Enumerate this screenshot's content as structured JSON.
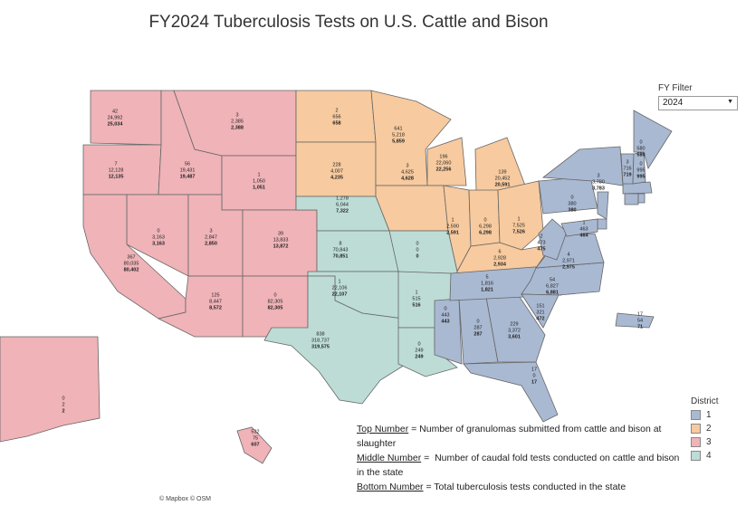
{
  "title": "FY2024 Tuberculosis Tests on U.S. Cattle and Bison",
  "filter": {
    "label": "FY Filter",
    "value": "2024"
  },
  "legend": {
    "title": "District",
    "items": [
      {
        "district": 1,
        "color": "#a9b9d2"
      },
      {
        "district": 2,
        "color": "#f7ca9f"
      },
      {
        "district": 3,
        "color": "#efb3b8"
      },
      {
        "district": 4,
        "color": "#bddcd6"
      }
    ]
  },
  "states": [
    {
      "district": 3,
      "numbers": [
        "42",
        "24,992",
        "25,034"
      ]
    },
    {
      "district": 3,
      "numbers": [
        "7",
        "12,128",
        "12,135"
      ]
    },
    {
      "district": 3,
      "numbers": [
        "56",
        "19,431",
        "19,487"
      ]
    },
    {
      "district": 3,
      "numbers": [
        "3",
        "2,385",
        "2,388"
      ]
    },
    {
      "district": 3,
      "numbers": [
        "1",
        "1,050",
        "1,051"
      ]
    },
    {
      "district": 3,
      "numbers": [
        "0",
        "3,163",
        "3,163"
      ]
    },
    {
      "district": 3,
      "numbers": [
        "3",
        "2,847",
        "2,850"
      ]
    },
    {
      "district": 3,
      "numbers": [
        "39",
        "13,833",
        "13,872"
      ]
    },
    {
      "district": 3,
      "numbers": [
        "367",
        "80,035",
        "80,402"
      ]
    },
    {
      "district": 3,
      "numbers": [
        "125",
        "8,447",
        "8,572"
      ]
    },
    {
      "district": 3,
      "numbers": [
        "0",
        "82,305",
        "82,305"
      ]
    },
    {
      "district": 3,
      "numbers": [
        "0",
        "2",
        "2"
      ]
    },
    {
      "district": 3,
      "numbers": [
        "532",
        "75",
        "607"
      ]
    },
    {
      "district": 2,
      "numbers": [
        "2",
        "656",
        "658"
      ]
    },
    {
      "district": 2,
      "numbers": [
        "228",
        "4,007",
        "4,235"
      ]
    },
    {
      "district": 2,
      "numbers": [
        "641",
        "5,218",
        "5,859"
      ]
    },
    {
      "district": 2,
      "numbers": [
        "196",
        "22,060",
        "22,256"
      ]
    },
    {
      "district": 2,
      "numbers": [
        "3",
        "4,625",
        "4,628"
      ]
    },
    {
      "district": 2,
      "numbers": [
        "139",
        "20,452",
        "20,591"
      ]
    },
    {
      "district": 2,
      "numbers": [
        "1",
        "2,590",
        "2,591"
      ]
    },
    {
      "district": 2,
      "numbers": [
        "0",
        "6,298",
        "6,298"
      ]
    },
    {
      "district": 2,
      "numbers": [
        "1",
        "7,525",
        "7,526"
      ]
    },
    {
      "district": 2,
      "numbers": [
        "6",
        "2,928",
        "2,934"
      ]
    },
    {
      "district": 4,
      "numbers": [
        "1,278",
        "6,044",
        "7,322"
      ]
    },
    {
      "district": 4,
      "numbers": [
        "8",
        "70,843",
        "70,851"
      ]
    },
    {
      "district": 4,
      "numbers": [
        "0",
        "0",
        "0"
      ]
    },
    {
      "district": 4,
      "numbers": [
        "1",
        "22,106",
        "22,107"
      ]
    },
    {
      "district": 4,
      "numbers": [
        "838",
        "318,737",
        "319,575"
      ]
    },
    {
      "district": 4,
      "numbers": [
        "1",
        "515",
        "516"
      ]
    },
    {
      "district": 4,
      "numbers": [
        "0",
        "249",
        "249"
      ]
    },
    {
      "district": 1,
      "numbers": [
        "0",
        "443",
        "443"
      ]
    },
    {
      "district": 1,
      "numbers": [
        "0",
        "287",
        "287"
      ]
    },
    {
      "district": 1,
      "numbers": [
        "229",
        "3,372",
        "3,601"
      ]
    },
    {
      "district": 1,
      "numbers": [
        "17",
        "0",
        "17"
      ]
    },
    {
      "district": 1,
      "numbers": [
        "5",
        "1,816",
        "1,821"
      ]
    },
    {
      "district": 1,
      "numbers": [
        "54",
        "6,827",
        "6,881"
      ]
    },
    {
      "district": 1,
      "numbers": [
        "151",
        "321",
        "472"
      ]
    },
    {
      "district": 1,
      "numbers": [
        "4",
        "2,971",
        "2,975"
      ]
    },
    {
      "district": 1,
      "numbers": [
        "2",
        "473",
        "475"
      ]
    },
    {
      "district": 1,
      "numbers": [
        "0",
        "380",
        "380"
      ]
    },
    {
      "district": 1,
      "numbers": [
        "3",
        "3,780",
        "3,783"
      ]
    },
    {
      "district": 1,
      "numbers": [
        "3",
        "716",
        "719"
      ]
    },
    {
      "district": 1,
      "numbers": [
        "0",
        "995",
        "995"
      ]
    },
    {
      "district": 1,
      "numbers": [
        "0",
        "580",
        "580"
      ]
    },
    {
      "district": 1,
      "numbers": [
        "1",
        "463",
        "464"
      ]
    },
    {
      "district": 1,
      "numbers": [
        "17",
        "54",
        "71"
      ]
    }
  ],
  "notes": [
    {
      "term": "Top Number",
      "text": " = Number of granulomas submitted from cattle and bison at slaughter"
    },
    {
      "term": "Middle Number",
      "text": " =  Number of caudal fold tests conducted on cattle and bison in the state"
    },
    {
      "term": "Bottom Number",
      "text": " = Total tuberculosis tests conducted in the state"
    }
  ],
  "credit": "© Mapbox © OSM"
}
